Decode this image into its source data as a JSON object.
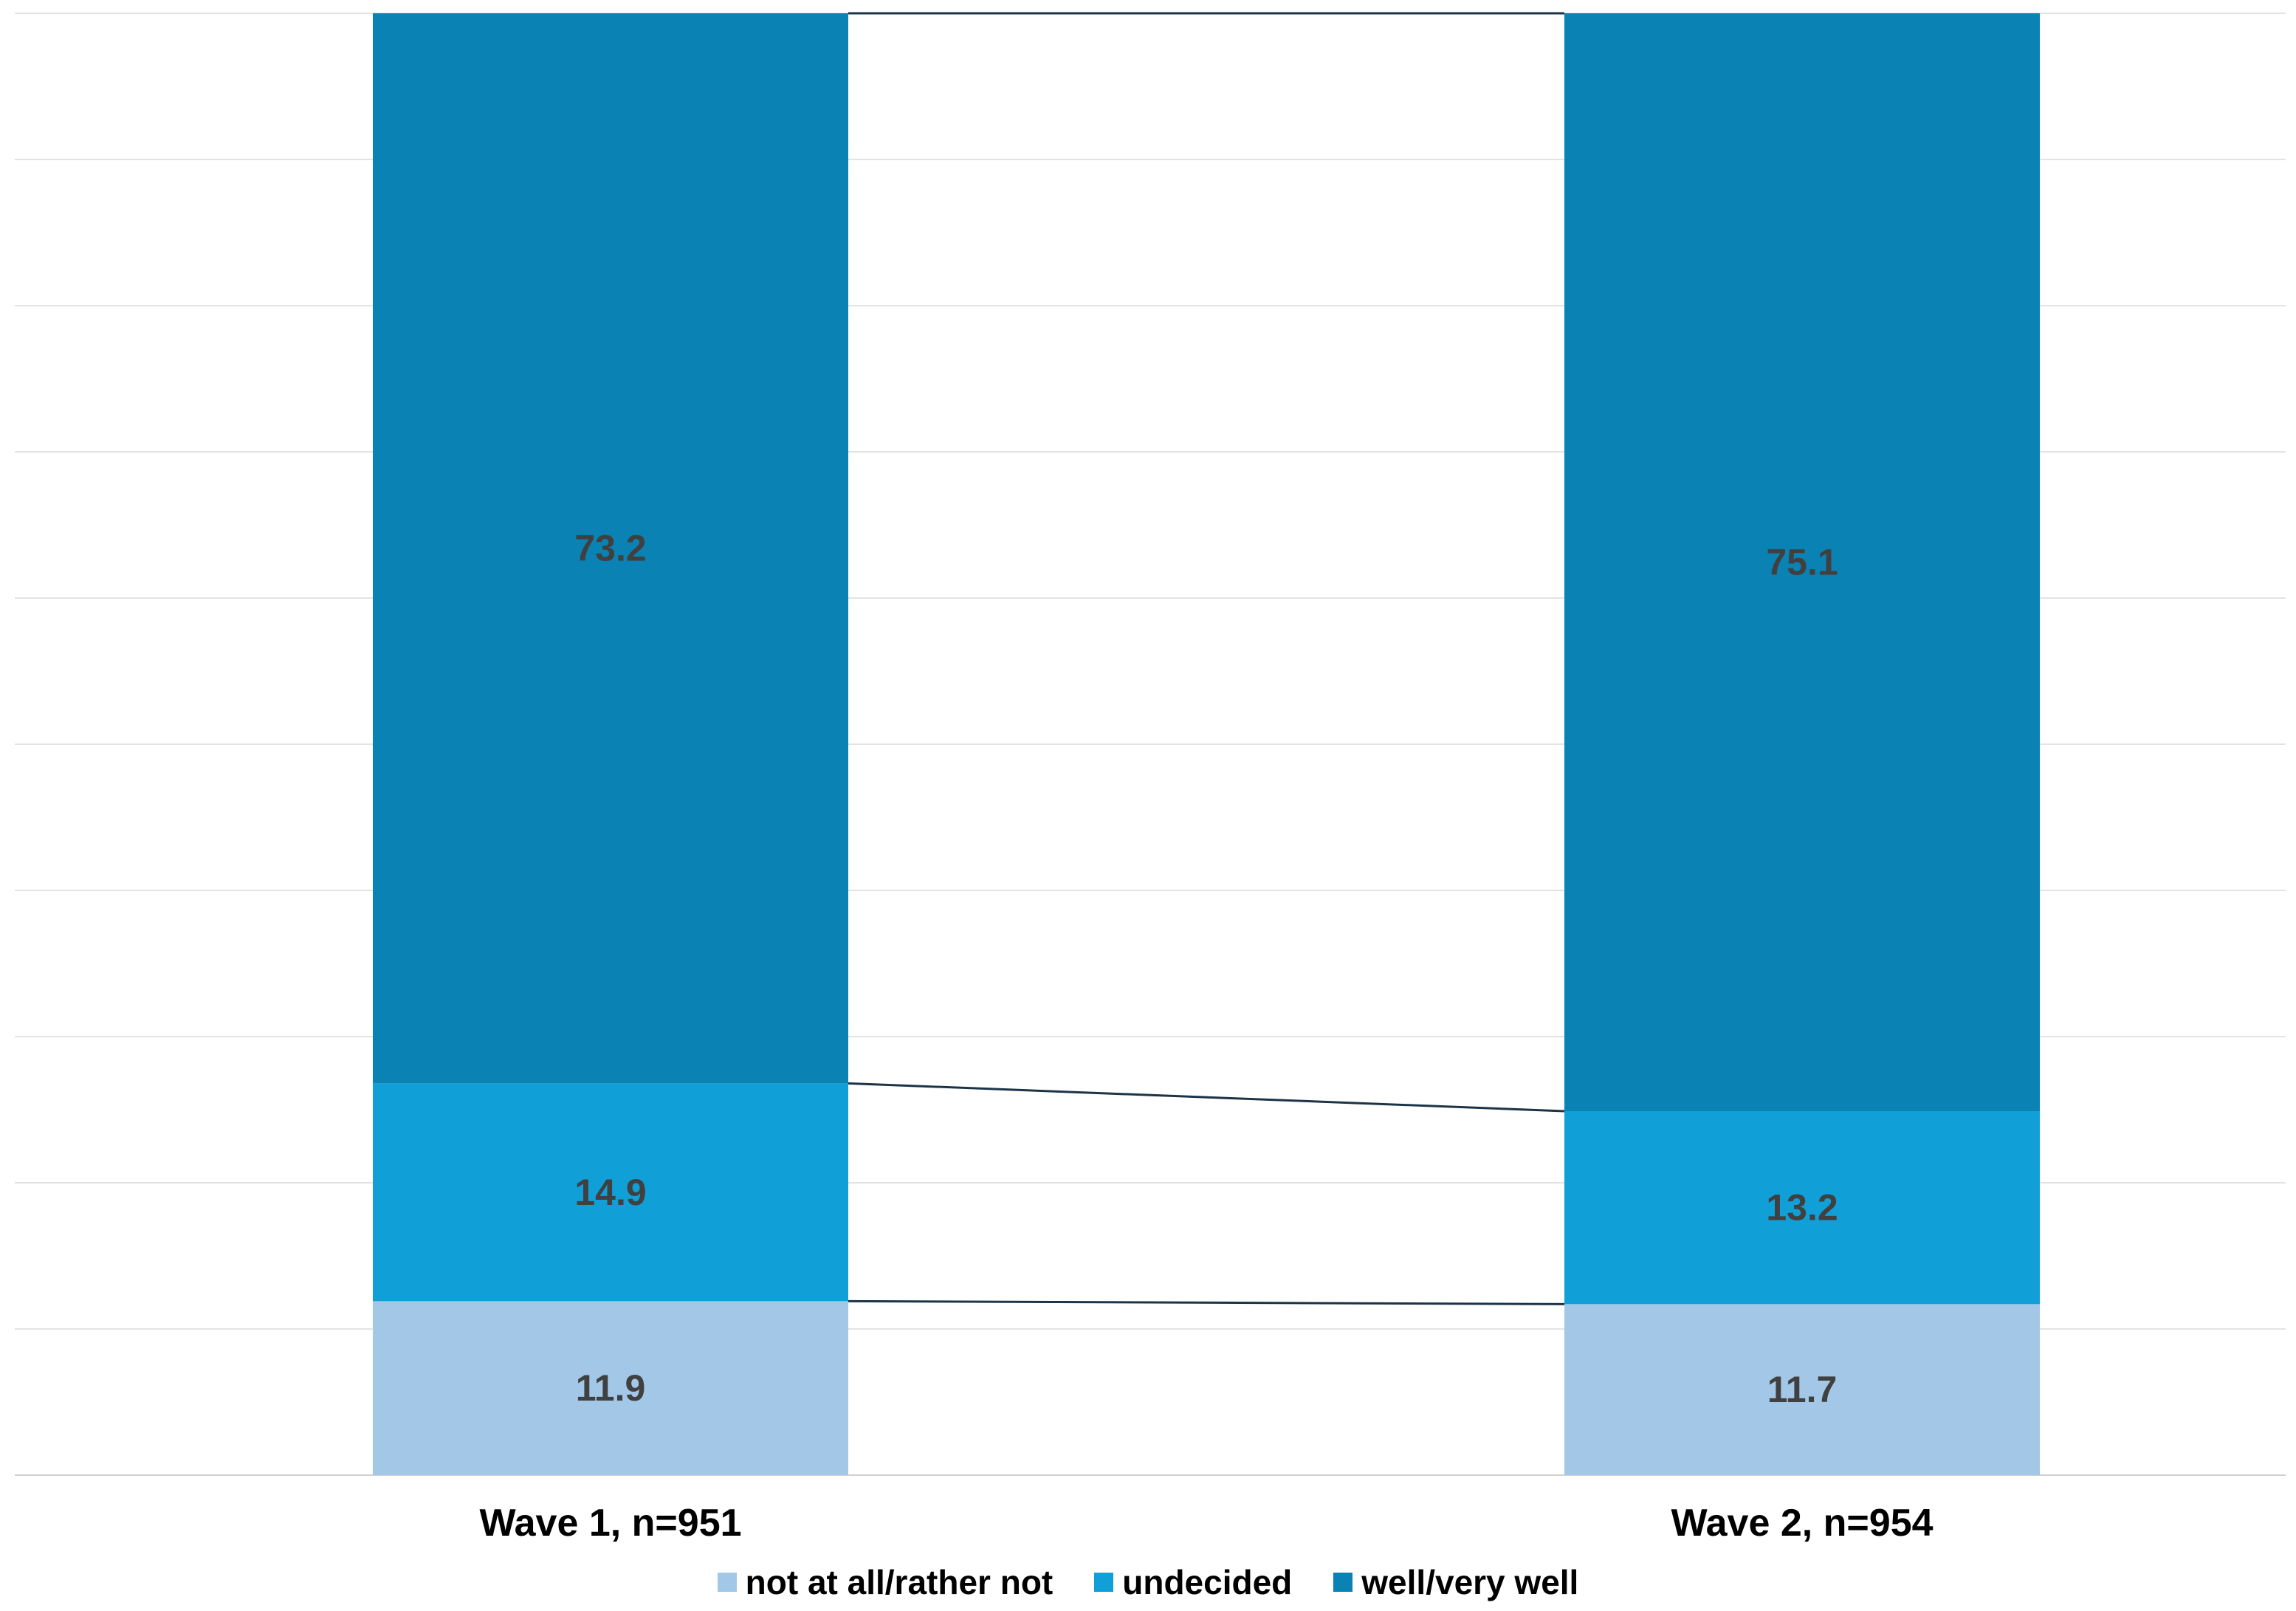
{
  "chart_data": {
    "type": "bar",
    "stacked": true,
    "categories": [
      "Wave 1, n=951",
      "Wave 2, n=954"
    ],
    "series": [
      {
        "name": "not at all/rather not",
        "values": [
          11.9,
          11.7
        ],
        "color": "#a3c7e6"
      },
      {
        "name": "undecided",
        "values": [
          14.9,
          13.2
        ],
        "color": "#119fd8"
      },
      {
        "name": "well/very well",
        "values": [
          73.2,
          75.1
        ],
        "color": "#0a82b3"
      }
    ],
    "ylim": [
      0,
      100
    ],
    "grid": true,
    "legend_position": "bottom",
    "series_connector_lines": true
  }
}
